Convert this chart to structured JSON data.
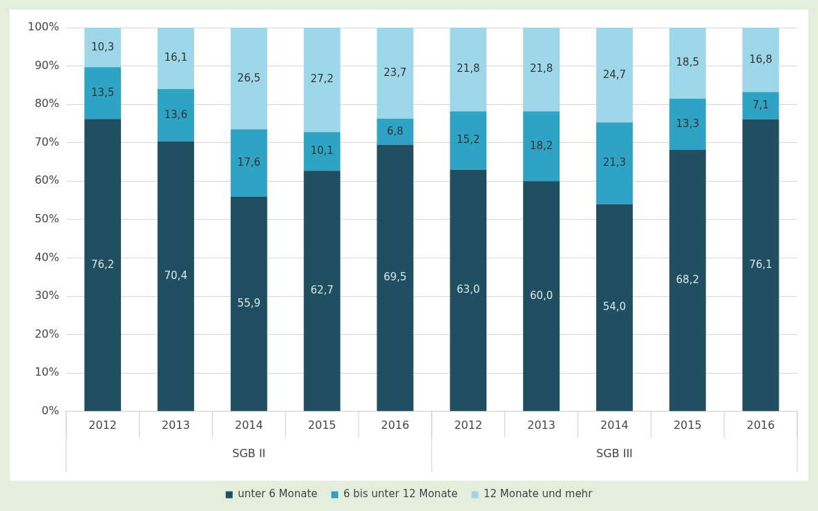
{
  "chart_data": {
    "type": "bar",
    "stacked": true,
    "categories": [
      "2012",
      "2013",
      "2014",
      "2015",
      "2016",
      "2012",
      "2013",
      "2014",
      "2015",
      "2016"
    ],
    "series": [
      {
        "name": "unter 6 Monate",
        "color": "#1f4f60",
        "values": [
          76.2,
          70.4,
          55.9,
          62.7,
          69.5,
          63.0,
          60.0,
          54.0,
          68.2,
          76.1
        ],
        "value_labels": [
          "76,2",
          "70,4",
          "55,9",
          "62,7",
          "69,5",
          "63,0",
          "60,0",
          "54,0",
          "68,2",
          "76,1"
        ]
      },
      {
        "name": "6 bis unter 12 Monate",
        "color": "#2fa3c4",
        "values": [
          13.5,
          13.6,
          17.6,
          10.1,
          6.8,
          15.2,
          18.2,
          21.3,
          13.3,
          7.1
        ],
        "value_labels": [
          "13,5",
          "13,6",
          "17,6",
          "10,1",
          "6,8",
          "15,2",
          "18,2",
          "21,3",
          "13,3",
          "7,1"
        ]
      },
      {
        "name": "12 Monate und mehr",
        "color": "#9fd7ea",
        "values": [
          10.3,
          16.1,
          26.5,
          27.2,
          23.7,
          21.8,
          21.8,
          24.7,
          18.5,
          16.8
        ],
        "value_labels": [
          "10,3",
          "16,1",
          "26,5",
          "27,2",
          "23,7",
          "21,8",
          "21,8",
          "24,7",
          "18,5",
          "16,8"
        ]
      }
    ],
    "ylim": [
      0,
      100
    ],
    "yticks": [
      {
        "value": 0,
        "label": "0%"
      },
      {
        "value": 10,
        "label": "10%"
      },
      {
        "value": 20,
        "label": "20%"
      },
      {
        "value": 30,
        "label": "30%"
      },
      {
        "value": 40,
        "label": "40%"
      },
      {
        "value": 50,
        "label": "50%"
      },
      {
        "value": 60,
        "label": "60%"
      },
      {
        "value": 70,
        "label": "70%"
      },
      {
        "value": 80,
        "label": "80%"
      },
      {
        "value": 90,
        "label": "90%"
      },
      {
        "value": 100,
        "label": "100%"
      }
    ],
    "grid": "y",
    "legend": "bottom",
    "annotations": [
      "SGB II",
      "SGB III"
    ]
  }
}
